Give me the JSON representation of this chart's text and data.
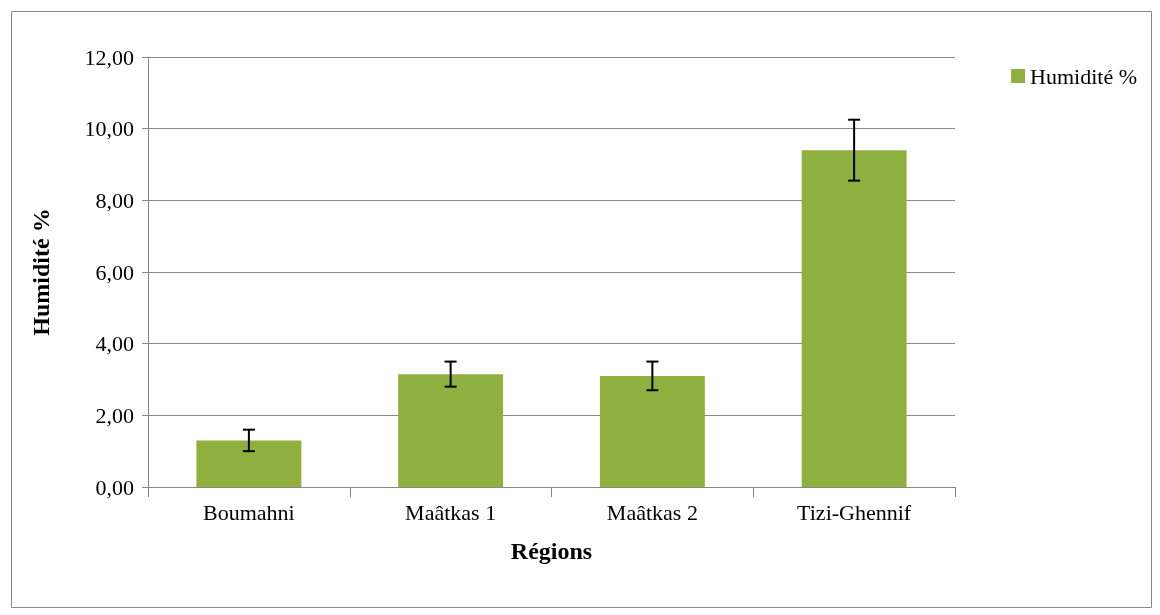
{
  "chart_data": {
    "type": "bar",
    "xlabel": "Régions",
    "ylabel": "Humidité %",
    "categories": [
      "Boumahni",
      "Maâtkas 1",
      "Maâtkas 2",
      "Tizi-Ghennif"
    ],
    "series": [
      {
        "name": "Humidité %",
        "color": "#8fb03e",
        "values": [
          1.3,
          3.15,
          3.1,
          9.4
        ],
        "errors": [
          0.3,
          0.35,
          0.4,
          0.85
        ]
      }
    ],
    "ylim": [
      0,
      12
    ],
    "yticks": [
      {
        "value": 0,
        "label": "0,00"
      },
      {
        "value": 2,
        "label": "2,00"
      },
      {
        "value": 4,
        "label": "4,00"
      },
      {
        "value": 6,
        "label": "6,00"
      },
      {
        "value": 8,
        "label": "8,00"
      },
      {
        "value": 10,
        "label": "10,00"
      },
      {
        "value": 12,
        "label": "12,00"
      }
    ],
    "grid": "y",
    "legend": "top right"
  }
}
